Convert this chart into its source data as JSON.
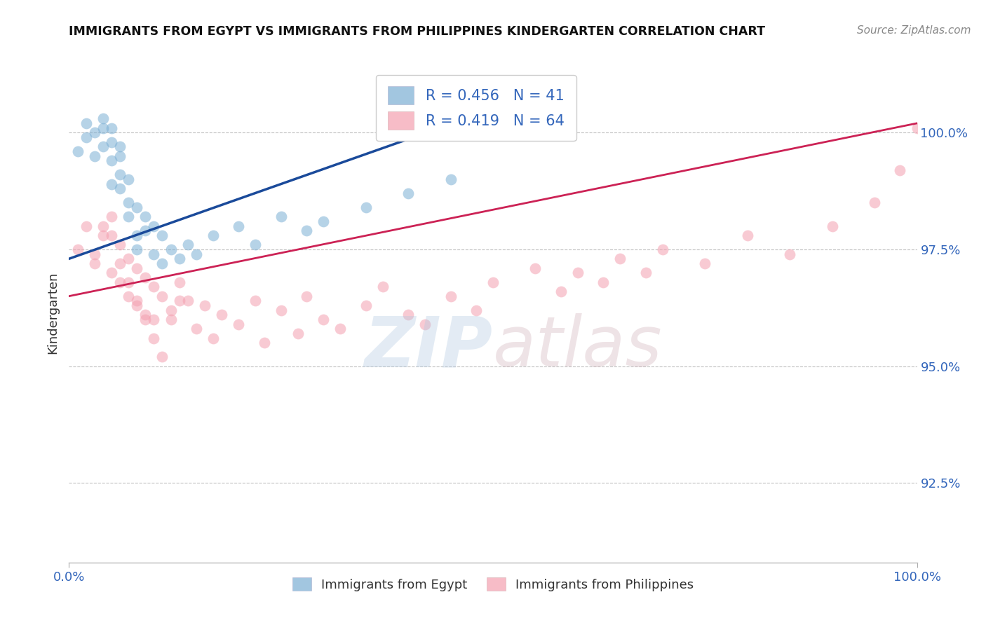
{
  "title": "IMMIGRANTS FROM EGYPT VS IMMIGRANTS FROM PHILIPPINES KINDERGARTEN CORRELATION CHART",
  "source": "Source: ZipAtlas.com",
  "ylabel": "Kindergarten",
  "xlim": [
    0.0,
    100.0
  ],
  "ylim": [
    90.8,
    101.5
  ],
  "yticks": [
    92.5,
    95.0,
    97.5,
    100.0
  ],
  "ytick_labels": [
    "92.5%",
    "95.0%",
    "97.5%",
    "100.0%"
  ],
  "xticks": [
    0.0,
    100.0
  ],
  "xtick_labels": [
    "0.0%",
    "100.0%"
  ],
  "egypt_color": "#7bafd4",
  "philippines_color": "#f4a0b0",
  "egypt_line_color": "#1a4a9a",
  "philippines_line_color": "#cc2255",
  "egypt_R": 0.456,
  "egypt_N": 41,
  "philippines_R": 0.419,
  "philippines_N": 64,
  "legend_label_egypt": "Immigrants from Egypt",
  "legend_label_philippines": "Immigrants from Philippines",
  "watermark_zip": "ZIP",
  "watermark_atlas": "atlas",
  "background_color": "#ffffff",
  "grid_color": "#bbbbbb",
  "title_color": "#111111",
  "axis_label_color": "#333333",
  "tick_color": "#3366bb",
  "egypt_x": [
    1,
    2,
    2,
    3,
    3,
    4,
    4,
    4,
    5,
    5,
    5,
    5,
    6,
    6,
    6,
    6,
    7,
    7,
    7,
    8,
    8,
    8,
    9,
    9,
    10,
    10,
    11,
    11,
    12,
    13,
    14,
    15,
    17,
    20,
    22,
    25,
    28,
    30,
    35,
    40,
    45
  ],
  "egypt_y": [
    99.6,
    99.9,
    100.2,
    100.0,
    99.5,
    100.1,
    99.7,
    100.3,
    99.8,
    100.1,
    99.4,
    98.9,
    99.5,
    98.8,
    99.1,
    99.7,
    98.5,
    99.0,
    98.2,
    97.8,
    98.4,
    97.5,
    97.9,
    98.2,
    97.4,
    98.0,
    97.2,
    97.8,
    97.5,
    97.3,
    97.6,
    97.4,
    97.8,
    98.0,
    97.6,
    98.2,
    97.9,
    98.1,
    98.4,
    98.7,
    99.0
  ],
  "philippines_x": [
    1,
    2,
    3,
    4,
    5,
    5,
    6,
    6,
    7,
    7,
    8,
    8,
    9,
    9,
    10,
    10,
    11,
    12,
    13,
    14,
    15,
    16,
    17,
    18,
    20,
    22,
    23,
    25,
    27,
    28,
    30,
    32,
    35,
    37,
    40,
    42,
    45,
    48,
    50,
    55,
    58,
    60,
    63,
    65,
    68,
    70,
    75,
    80,
    85,
    90,
    95,
    98,
    100,
    3,
    4,
    5,
    6,
    7,
    8,
    9,
    10,
    11,
    12,
    13
  ],
  "philippines_y": [
    97.5,
    98.0,
    97.2,
    97.8,
    98.2,
    97.0,
    97.6,
    96.8,
    97.3,
    96.5,
    97.1,
    96.3,
    96.9,
    96.1,
    96.7,
    96.0,
    96.5,
    96.2,
    96.8,
    96.4,
    95.8,
    96.3,
    95.6,
    96.1,
    95.9,
    96.4,
    95.5,
    96.2,
    95.7,
    96.5,
    96.0,
    95.8,
    96.3,
    96.7,
    96.1,
    95.9,
    96.5,
    96.2,
    96.8,
    97.1,
    96.6,
    97.0,
    96.8,
    97.3,
    97.0,
    97.5,
    97.2,
    97.8,
    97.4,
    98.0,
    98.5,
    99.2,
    100.1,
    97.4,
    98.0,
    97.8,
    97.2,
    96.8,
    96.4,
    96.0,
    95.6,
    95.2,
    96.0,
    96.4
  ],
  "egypt_line_x": [
    0,
    50
  ],
  "egypt_line_y": [
    97.3,
    100.5
  ],
  "phil_line_x": [
    0,
    100
  ],
  "phil_line_y": [
    96.5,
    100.2
  ]
}
